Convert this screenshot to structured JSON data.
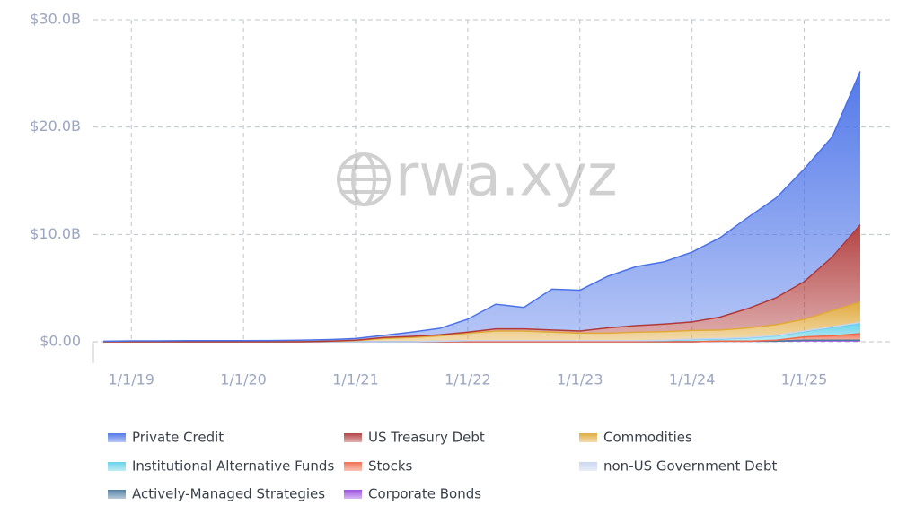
{
  "chart_data": {
    "type": "stacked-area",
    "watermark": "rwa.xyz",
    "categories": [
      null,
      "1/1/19",
      null,
      null,
      null,
      "1/1/20",
      null,
      null,
      null,
      "1/1/21",
      null,
      null,
      null,
      "1/1/22",
      null,
      null,
      null,
      "1/1/23",
      null,
      null,
      null,
      "1/1/24",
      null,
      null,
      null,
      "1/1/25",
      null,
      null
    ],
    "ylim": [
      0,
      30
    ],
    "yticks": [
      {
        "value": 0,
        "label": "$0.00"
      },
      {
        "value": 10,
        "label": "$10.0B"
      },
      {
        "value": 20,
        "label": "$20.0B"
      },
      {
        "value": 30,
        "label": "$30.0B"
      }
    ],
    "grid": true,
    "series": [
      {
        "name": "Corporate Bonds",
        "color": "#9a4ae0",
        "values": [
          0,
          0,
          0,
          0,
          0,
          0,
          0,
          0,
          0,
          0,
          0,
          0,
          0,
          0,
          0,
          0,
          0,
          0,
          0,
          0,
          0,
          0,
          0.05,
          0.05,
          0.05,
          0.1,
          0.1,
          0.1
        ]
      },
      {
        "name": "Actively-Managed Strategies",
        "color": "#4a7aa0",
        "values": [
          0,
          0,
          0,
          0,
          0,
          0,
          0,
          0,
          0,
          0,
          0,
          0,
          0,
          0,
          0,
          0,
          0,
          0,
          0,
          0,
          0,
          0,
          0,
          0,
          0,
          0.05,
          0.05,
          0.05
        ]
      },
      {
        "name": "Stocks",
        "color": "#f06a4a",
        "values": [
          0,
          0,
          0,
          0,
          0,
          0,
          0,
          0,
          0,
          0,
          0,
          0,
          0,
          0,
          0,
          0,
          0,
          0,
          0,
          0,
          0,
          0,
          0,
          0,
          0.1,
          0.3,
          0.4,
          0.6
        ]
      },
      {
        "name": "Institutional Alternative Funds",
        "color": "#5fd0e8",
        "values": [
          0,
          0,
          0,
          0,
          0,
          0,
          0,
          0,
          0,
          0,
          0,
          0,
          0.05,
          0.1,
          0.1,
          0.1,
          0.1,
          0.1,
          0.1,
          0.1,
          0.1,
          0.2,
          0.2,
          0.3,
          0.4,
          0.5,
          0.8,
          1.0
        ]
      },
      {
        "name": "non-US Government Debt",
        "color": "#c8d4f0",
        "values": [
          0,
          0,
          0,
          0,
          0,
          0,
          0,
          0,
          0,
          0,
          0,
          0,
          0,
          0,
          0,
          0,
          0,
          0,
          0,
          0,
          0.05,
          0.05,
          0.05,
          0.05,
          0.05,
          0.05,
          0.05,
          0.05
        ]
      },
      {
        "name": "Commodities",
        "color": "#e0a838",
        "values": [
          0,
          0,
          0,
          0,
          0,
          0,
          0,
          0,
          0.05,
          0.1,
          0.3,
          0.4,
          0.5,
          0.7,
          0.9,
          0.9,
          0.8,
          0.7,
          0.7,
          0.8,
          0.8,
          0.8,
          0.8,
          0.9,
          1.0,
          1.1,
          1.5,
          1.9
        ]
      },
      {
        "name": "US Treasury Debt",
        "color": "#b03a3a",
        "values": [
          0,
          0,
          0,
          0,
          0,
          0,
          0,
          0,
          0,
          0.05,
          0.1,
          0.1,
          0.1,
          0.1,
          0.2,
          0.2,
          0.2,
          0.2,
          0.5,
          0.6,
          0.7,
          0.8,
          1.2,
          1.8,
          2.5,
          3.5,
          5.0,
          7.2
        ]
      },
      {
        "name": "Private Credit",
        "color": "#4a72e8",
        "values": [
          0.05,
          0.08,
          0.08,
          0.1,
          0.1,
          0.1,
          0.12,
          0.15,
          0.15,
          0.15,
          0.2,
          0.4,
          0.6,
          1.2,
          2.3,
          2.0,
          3.8,
          3.8,
          4.8,
          5.5,
          5.8,
          6.5,
          7.4,
          8.5,
          9.3,
          10.5,
          11.2,
          14.3
        ]
      }
    ],
    "legend_order": [
      7,
      6,
      5,
      3,
      2,
      4,
      1,
      0
    ]
  }
}
